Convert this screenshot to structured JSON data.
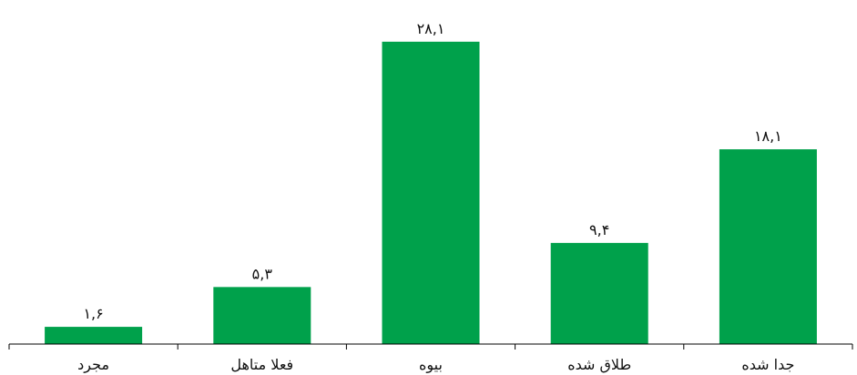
{
  "chart_data": {
    "type": "bar",
    "categories": [
      "مجرد",
      "فعلا متاهل",
      "بیوه",
      "طلاق شده",
      "جدا شده"
    ],
    "values": [
      1.6,
      5.3,
      28.1,
      9.4,
      18.1
    ],
    "data_labels": [
      "۱,۶",
      "۵,۳",
      "۲۸,۱",
      "۹,۴",
      "۱۸,۱"
    ],
    "title": "",
    "xlabel": "",
    "ylabel": "",
    "ylim": [
      0,
      31.3
    ],
    "grid": false,
    "legend": "none",
    "bar_color": "#00a14b"
  }
}
